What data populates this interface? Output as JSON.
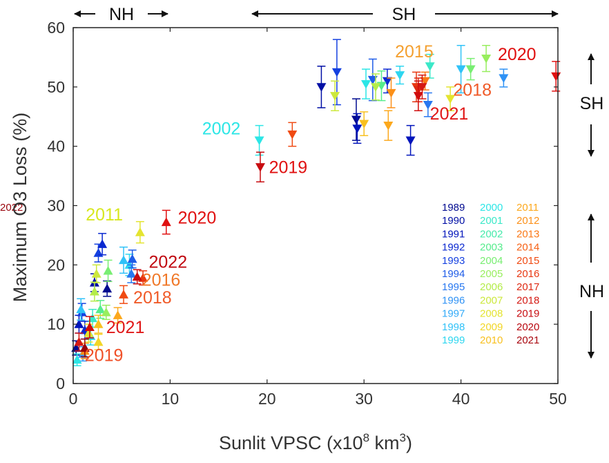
{
  "chart_data": {
    "type": "scatter",
    "xlabel": "Sunlit VPSC (x10",
    "xlabel_sup": "8",
    "xlabel_unit": " km",
    "xlabel_sup2": "3",
    "xlabel_close": ")",
    "ylabel": "Maximum O3 Loss (%)",
    "xlim": [
      0,
      50
    ],
    "ylim": [
      0,
      60
    ],
    "xticks": [
      "0",
      "10",
      "20",
      "30",
      "40",
      "50"
    ],
    "yticks": [
      "0",
      "10",
      "20",
      "30",
      "40",
      "50",
      "60"
    ],
    "grid": false,
    "legend_placement": "lower-right",
    "hemisphere_labels": {
      "top_nh": "NH",
      "top_sh": "SH",
      "right_sh": "SH",
      "right_nh": "NH"
    },
    "years": [
      {
        "year": "1989",
        "color": "#000a8f"
      },
      {
        "year": "1990",
        "color": "#000fa5"
      },
      {
        "year": "1991",
        "color": "#0014bb"
      },
      {
        "year": "1992",
        "color": "#0a28d0"
      },
      {
        "year": "1993",
        "color": "#1440e0"
      },
      {
        "year": "1994",
        "color": "#1e5ce8"
      },
      {
        "year": "1995",
        "color": "#2878f0"
      },
      {
        "year": "1996",
        "color": "#2f92f5"
      },
      {
        "year": "1997",
        "color": "#32aaf8"
      },
      {
        "year": "1998",
        "color": "#30c2f8"
      },
      {
        "year": "1999",
        "color": "#2dd6f0"
      },
      {
        "year": "2000",
        "color": "#2ce6e6"
      },
      {
        "year": "2001",
        "color": "#3ae8c8"
      },
      {
        "year": "2002",
        "color": "#44eaaa"
      },
      {
        "year": "2003",
        "color": "#56ec8c"
      },
      {
        "year": "2004",
        "color": "#78ee72"
      },
      {
        "year": "2005",
        "color": "#98ee5e"
      },
      {
        "year": "2006",
        "color": "#b4ec4a"
      },
      {
        "year": "2007",
        "color": "#cce83c"
      },
      {
        "year": "2008",
        "color": "#e4e430"
      },
      {
        "year": "2009",
        "color": "#f2d626"
      },
      {
        "year": "2010",
        "color": "#f8c020"
      },
      {
        "year": "2011",
        "color": "#fca81c"
      },
      {
        "year": "2012",
        "color": "#fc9018"
      },
      {
        "year": "2013",
        "color": "#fa7816"
      },
      {
        "year": "2014",
        "color": "#f66014"
      },
      {
        "year": "2015",
        "color": "#f04a12"
      },
      {
        "year": "2016",
        "color": "#e83812"
      },
      {
        "year": "2017",
        "color": "#de2812"
      },
      {
        "year": "2018",
        "color": "#d41812"
      },
      {
        "year": "2019",
        "color": "#c80c10"
      },
      {
        "year": "2020",
        "color": "#b8060e"
      },
      {
        "year": "2021",
        "color": "#a8040c"
      },
      {
        "year": "2022",
        "color": "#98020a"
      }
    ],
    "series": [
      {
        "name": "NH",
        "marker": "triangle-up",
        "points": [
          {
            "x": 0.3,
            "y": 6.0,
            "err": 1.2,
            "color": "#000a8f"
          },
          {
            "x": 0.6,
            "y": 10.0,
            "err": 1.5,
            "color": "#0014bb"
          },
          {
            "x": 0.9,
            "y": 12.0,
            "err": 1.5,
            "color": "#1440e0"
          },
          {
            "x": 1.0,
            "y": 5.0,
            "err": 1.2,
            "color": "#2f92f5"
          },
          {
            "x": 1.2,
            "y": 9.0,
            "err": 1.5,
            "color": "#0a28d0"
          },
          {
            "x": 2.2,
            "y": 17.0,
            "err": 1.5,
            "color": "#000fa5"
          },
          {
            "x": 2.6,
            "y": 22.0,
            "err": 1.5,
            "color": "#1440e0"
          },
          {
            "x": 3.0,
            "y": 23.5,
            "err": 1.8,
            "color": "#0a28d0"
          },
          {
            "x": 3.5,
            "y": 16.0,
            "err": 1.3,
            "color": "#000a8f"
          },
          {
            "x": 5.2,
            "y": 20.8,
            "err": 2.2,
            "color": "#30c2f8"
          },
          {
            "x": 5.8,
            "y": 20.0,
            "err": 1.8,
            "color": "#2dd6f0"
          },
          {
            "x": 6.1,
            "y": 21.0,
            "err": 1.5,
            "color": "#1e5ce8"
          },
          {
            "x": 6.0,
            "y": 18.5,
            "err": 1.5,
            "color": "#2878f0"
          },
          {
            "x": 0.8,
            "y": 12.5,
            "err": 1.8,
            "color": "#30c2f8"
          },
          {
            "x": 1.8,
            "y": 8.0,
            "err": 1.5,
            "color": "#2dd6f0"
          },
          {
            "x": 0.4,
            "y": 4.0,
            "err": 1.0,
            "color": "#2ce6e6"
          },
          {
            "x": 2.0,
            "y": 11.0,
            "err": 1.5,
            "color": "#3ae8c8"
          },
          {
            "x": 2.8,
            "y": 12.5,
            "err": 1.5,
            "color": "#56ec8c"
          },
          {
            "x": 3.6,
            "y": 19.0,
            "err": 1.8,
            "color": "#78ee72"
          },
          {
            "x": 2.2,
            "y": 15.5,
            "err": 1.6,
            "color": "#b4ec4a"
          },
          {
            "x": 2.4,
            "y": 18.5,
            "err": 1.5,
            "color": "#cce83c"
          },
          {
            "x": 3.4,
            "y": 12.0,
            "err": 1.2,
            "color": "#98ee5e"
          },
          {
            "x": 1.6,
            "y": 8.5,
            "err": 1.5,
            "color": "#e4e430"
          },
          {
            "x": 2.6,
            "y": 7.0,
            "err": 1.3,
            "color": "#f2d626"
          },
          {
            "x": 6.9,
            "y": 25.5,
            "err": 1.8,
            "color": "#e4e430"
          },
          {
            "x": 2.6,
            "y": 10.0,
            "err": 1.5,
            "color": "#f8c020"
          },
          {
            "x": 4.6,
            "y": 11.5,
            "err": 1.3,
            "color": "#fca81c"
          },
          {
            "x": 1.2,
            "y": 5.5,
            "err": 1.3,
            "color": "#fc9018"
          },
          {
            "x": 5.2,
            "y": 15.0,
            "err": 1.5,
            "color": "#f04a12"
          },
          {
            "x": 7.2,
            "y": 17.8,
            "err": 1.2,
            "color": "#e83812"
          },
          {
            "x": 0.6,
            "y": 7.0,
            "err": 1.5,
            "color": "#d41812"
          },
          {
            "x": 6.6,
            "y": 18.0,
            "err": 1.2,
            "color": "#c80c10"
          },
          {
            "x": 9.6,
            "y": 27.2,
            "err": 2.0,
            "color": "#e01010"
          },
          {
            "x": 1.7,
            "y": 9.5,
            "err": 1.8,
            "color": "#d00c0c"
          },
          {
            "x": 1.2,
            "y": 6.0,
            "err": 1.5,
            "color": "#98020a"
          }
        ]
      },
      {
        "name": "SH",
        "marker": "triangle-down",
        "points": [
          {
            "x": 25.6,
            "y": 50.0,
            "err": 3.5,
            "color": "#000fa5"
          },
          {
            "x": 27.2,
            "y": 52.5,
            "err": 5.5,
            "color": "#1440e0"
          },
          {
            "x": 29.2,
            "y": 44.5,
            "err": 3.5,
            "color": "#000a8f"
          },
          {
            "x": 29.3,
            "y": 43.0,
            "err": 2.5,
            "color": "#0014bb"
          },
          {
            "x": 32.4,
            "y": 51.0,
            "err": 2.0,
            "color": "#0a28d0"
          },
          {
            "x": 34.8,
            "y": 41.0,
            "err": 2.5,
            "color": "#0014bb"
          },
          {
            "x": 30.9,
            "y": 51.2,
            "err": 3.5,
            "color": "#1e5ce8"
          },
          {
            "x": 36.6,
            "y": 47.0,
            "err": 2.0,
            "color": "#2878f0"
          },
          {
            "x": 44.4,
            "y": 51.5,
            "err": 1.5,
            "color": "#2f92f5"
          },
          {
            "x": 40.0,
            "y": 53.0,
            "err": 4.0,
            "color": "#30c2f8"
          },
          {
            "x": 33.7,
            "y": 52.0,
            "err": 1.5,
            "color": "#2dd6f0"
          },
          {
            "x": 30.2,
            "y": 50.5,
            "err": 2.5,
            "color": "#2ce6e6"
          },
          {
            "x": 19.2,
            "y": 41.0,
            "err": 2.5,
            "color": "#2ce6e6"
          },
          {
            "x": 36.8,
            "y": 53.5,
            "err": 2.0,
            "color": "#3ae8c8"
          },
          {
            "x": 31.8,
            "y": 50.2,
            "err": 2.5,
            "color": "#56ec8c"
          },
          {
            "x": 41.0,
            "y": 53.0,
            "err": 1.8,
            "color": "#78ee72"
          },
          {
            "x": 42.6,
            "y": 54.8,
            "err": 2.2,
            "color": "#98ee5e"
          },
          {
            "x": 27.0,
            "y": 48.5,
            "err": 2.5,
            "color": "#cce83c"
          },
          {
            "x": 31.2,
            "y": 50.0,
            "err": 2.2,
            "color": "#b4ec4a"
          },
          {
            "x": 38.9,
            "y": 48.0,
            "err": 2.0,
            "color": "#e4e430"
          },
          {
            "x": 30.0,
            "y": 43.8,
            "err": 2.0,
            "color": "#f8c020"
          },
          {
            "x": 32.5,
            "y": 43.5,
            "err": 2.5,
            "color": "#fca81c"
          },
          {
            "x": 32.8,
            "y": 49.0,
            "err": 2.5,
            "color": "#fc9018"
          },
          {
            "x": 36.3,
            "y": 51.0,
            "err": 1.5,
            "color": "#fa7816"
          },
          {
            "x": 22.6,
            "y": 42.0,
            "err": 2.0,
            "color": "#f04a12"
          },
          {
            "x": 35.4,
            "y": 50.0,
            "err": 2.5,
            "color": "#e83812"
          },
          {
            "x": 35.6,
            "y": 49.5,
            "err": 2.0,
            "color": "#de2812"
          },
          {
            "x": 36.0,
            "y": 50.0,
            "err": 2.0,
            "color": "#d41812"
          },
          {
            "x": 19.3,
            "y": 36.5,
            "err": 2.5,
            "color": "#c80c10"
          },
          {
            "x": 49.8,
            "y": 51.8,
            "err": 2.5,
            "color": "#e01010"
          },
          {
            "x": 35.6,
            "y": 48.5,
            "err": 2.5,
            "color": "#d00c0c"
          }
        ]
      }
    ],
    "annotations": [
      {
        "text": "2011",
        "x": 1.3,
        "y": 27.5,
        "color": "#d8e820"
      },
      {
        "text": "2020",
        "x": 10.8,
        "y": 27.0,
        "color": "#e01010"
      },
      {
        "text": "2022",
        "x": 7.8,
        "y": 19.5,
        "color": "#c00810"
      },
      {
        "text": "2016",
        "x": 7.1,
        "y": 16.5,
        "color": "#f07828"
      },
      {
        "text": "2018",
        "x": 6.2,
        "y": 13.5,
        "color": "#f05a28"
      },
      {
        "text": "2021",
        "x": 3.4,
        "y": 8.5,
        "color": "#e01818"
      },
      {
        "text": "2019",
        "x": 1.2,
        "y": 3.8,
        "color": "#f05028"
      },
      {
        "text": "2002",
        "x": 13.3,
        "y": 42.0,
        "color": "#2ce6e6"
      },
      {
        "text": "2019",
        "x": 20.2,
        "y": 35.5,
        "color": "#e01010"
      },
      {
        "text": "2015",
        "x": 33.2,
        "y": 55.0,
        "color": "#f4a030"
      },
      {
        "text": "2020",
        "x": 43.8,
        "y": 54.5,
        "color": "#e01010"
      },
      {
        "text": "2018",
        "x": 39.2,
        "y": 48.5,
        "color": "#f05a28"
      },
      {
        "text": "2021",
        "x": 36.8,
        "y": 44.5,
        "color": "#e01818"
      }
    ]
  }
}
